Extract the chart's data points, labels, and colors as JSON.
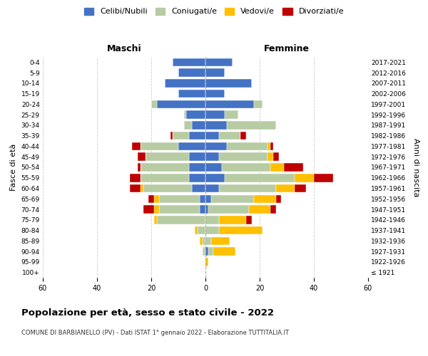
{
  "age_groups": [
    "100+",
    "95-99",
    "90-94",
    "85-89",
    "80-84",
    "75-79",
    "70-74",
    "65-69",
    "60-64",
    "55-59",
    "50-54",
    "45-49",
    "40-44",
    "35-39",
    "30-34",
    "25-29",
    "20-24",
    "15-19",
    "10-14",
    "5-9",
    "0-4"
  ],
  "birth_years": [
    "≤ 1921",
    "1922-1926",
    "1927-1931",
    "1932-1936",
    "1937-1941",
    "1942-1946",
    "1947-1951",
    "1952-1956",
    "1957-1961",
    "1962-1966",
    "1967-1971",
    "1972-1976",
    "1977-1981",
    "1982-1986",
    "1987-1991",
    "1992-1996",
    "1997-2001",
    "2002-2006",
    "2007-2011",
    "2012-2016",
    "2017-2021"
  ],
  "males": {
    "celibi": [
      0,
      0,
      0,
      0,
      0,
      0,
      2,
      2,
      5,
      6,
      6,
      6,
      10,
      6,
      5,
      7,
      18,
      10,
      15,
      10,
      12
    ],
    "coniugati": [
      0,
      0,
      1,
      1,
      3,
      18,
      15,
      15,
      18,
      18,
      18,
      16,
      14,
      6,
      3,
      1,
      2,
      0,
      0,
      0,
      0
    ],
    "vedovi": [
      0,
      0,
      0,
      1,
      1,
      1,
      2,
      2,
      1,
      0,
      0,
      0,
      0,
      0,
      0,
      0,
      0,
      0,
      0,
      0,
      0
    ],
    "divorziati": [
      0,
      0,
      0,
      0,
      0,
      0,
      4,
      2,
      4,
      4,
      1,
      3,
      3,
      1,
      0,
      0,
      0,
      0,
      0,
      0,
      0
    ]
  },
  "females": {
    "nubili": [
      0,
      0,
      1,
      0,
      0,
      0,
      1,
      2,
      5,
      7,
      6,
      5,
      8,
      5,
      8,
      7,
      18,
      7,
      17,
      7,
      10
    ],
    "coniugate": [
      0,
      0,
      2,
      2,
      5,
      5,
      15,
      16,
      21,
      26,
      18,
      18,
      15,
      8,
      18,
      5,
      3,
      0,
      0,
      0,
      0
    ],
    "vedove": [
      0,
      1,
      8,
      7,
      16,
      10,
      8,
      8,
      7,
      7,
      5,
      2,
      1,
      0,
      0,
      0,
      0,
      0,
      0,
      0,
      0
    ],
    "divorziate": [
      0,
      0,
      0,
      0,
      0,
      2,
      2,
      2,
      4,
      7,
      7,
      2,
      1,
      2,
      0,
      0,
      0,
      0,
      0,
      0,
      0
    ]
  },
  "colors": {
    "celibi_nubili": "#4472c4",
    "coniugati": "#b8cca4",
    "vedovi": "#ffc000",
    "divorziati": "#c00000"
  },
  "xlim": 60,
  "title": "Popolazione per età, sesso e stato civile - 2022",
  "subtitle": "COMUNE DI BARBIANELLO (PV) - Dati ISTAT 1° gennaio 2022 - Elaborazione TUTTITALIA.IT",
  "ylabel_left": "Fasce di età",
  "ylabel_right": "Anni di nascita",
  "xlabel_left": "Maschi",
  "xlabel_right": "Femmine",
  "legend_labels": [
    "Celibi/Nubili",
    "Coniugati/e",
    "Vedovi/e",
    "Divorziati/e"
  ],
  "background_color": "#ffffff",
  "grid_color": "#cccccc"
}
